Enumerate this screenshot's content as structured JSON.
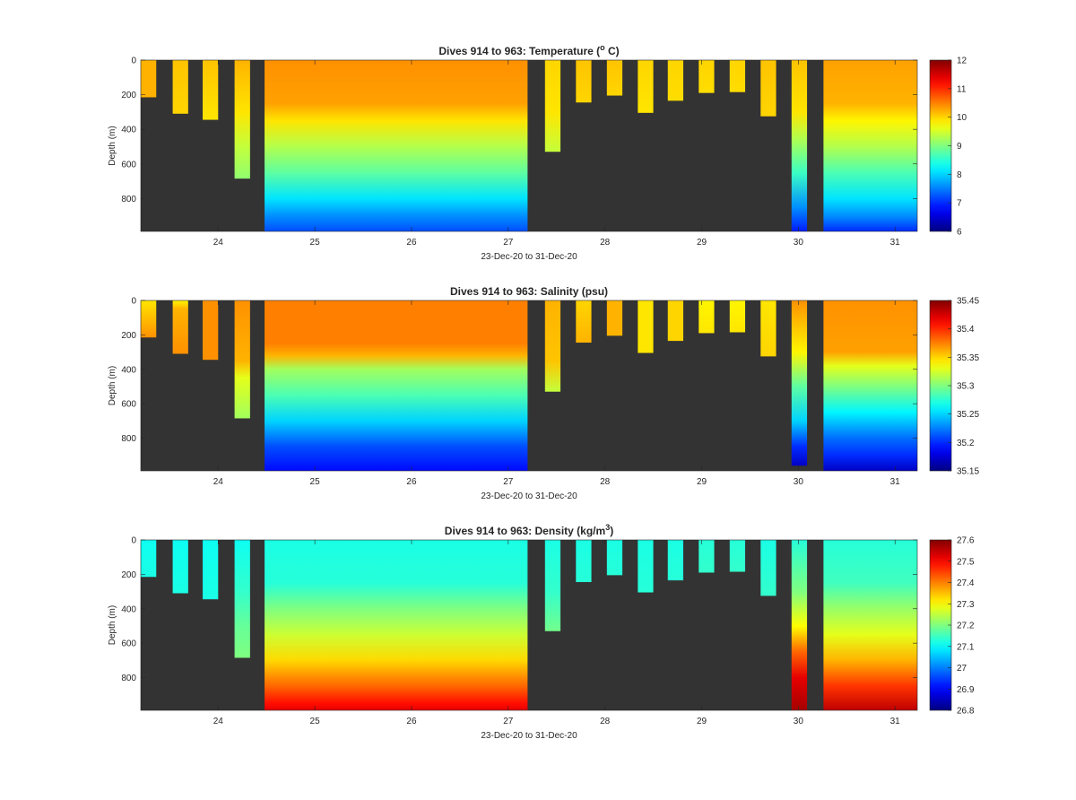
{
  "colors": {
    "no_data": "#333333",
    "axis": "#262626",
    "background": "#ffffff"
  },
  "colormap": "jet",
  "chart_data": [
    {
      "type": "heatmap",
      "title": "Dives 914 to 963: Temperature (",
      "title_sup": "o",
      "title_end": " C)",
      "xlabel": "23-Dec-20 to 31-Dec-20",
      "ylabel": "Depth (m)",
      "xlim": [
        23.2,
        31.23
      ],
      "ylim": [
        990,
        0
      ],
      "xticks": [
        24,
        25,
        26,
        27,
        28,
        29,
        30,
        31
      ],
      "yticks": [
        0,
        200,
        400,
        600,
        800
      ],
      "clim": [
        6,
        12
      ],
      "cticks": [
        6,
        7,
        8,
        9,
        10,
        11,
        12
      ],
      "profiles": [
        {
          "x0": 23.2,
          "x1": 23.36,
          "max_depth": 215,
          "stops": [
            [
              0,
              10.2
            ],
            [
              215,
              10.2
            ]
          ]
        },
        {
          "x0": 23.53,
          "x1": 23.69,
          "max_depth": 310,
          "stops": [
            [
              0,
              10.1
            ],
            [
              310,
              10.0
            ]
          ]
        },
        {
          "x0": 23.84,
          "x1": 24.0,
          "max_depth": 345,
          "stops": [
            [
              0,
              10.1
            ],
            [
              345,
              9.9
            ]
          ]
        },
        {
          "x0": 24.17,
          "x1": 24.33,
          "max_depth": 685,
          "stops": [
            [
              0,
              10.2
            ],
            [
              300,
              9.9
            ],
            [
              500,
              9.4
            ],
            [
              685,
              9.1
            ]
          ]
        },
        {
          "x0": 24.48,
          "x1": 27.2,
          "max_depth": 990,
          "stops": [
            [
              0,
              10.4
            ],
            [
              250,
              10.3
            ],
            [
              350,
              9.9
            ],
            [
              500,
              9.3
            ],
            [
              650,
              8.8
            ],
            [
              800,
              8.1
            ],
            [
              900,
              7.6
            ],
            [
              990,
              7.2
            ]
          ]
        },
        {
          "x0": 27.38,
          "x1": 27.54,
          "max_depth": 530,
          "stops": [
            [
              0,
              10.0
            ],
            [
              300,
              9.9
            ],
            [
              530,
              9.4
            ]
          ]
        },
        {
          "x0": 27.7,
          "x1": 27.86,
          "max_depth": 245,
          "stops": [
            [
              0,
              10.1
            ],
            [
              245,
              10.0
            ]
          ]
        },
        {
          "x0": 28.02,
          "x1": 28.18,
          "max_depth": 205,
          "stops": [
            [
              0,
              10.1
            ],
            [
              205,
              10.0
            ]
          ]
        },
        {
          "x0": 28.34,
          "x1": 28.5,
          "max_depth": 305,
          "stops": [
            [
              0,
              10.0
            ],
            [
              305,
              9.9
            ]
          ]
        },
        {
          "x0": 28.65,
          "x1": 28.81,
          "max_depth": 235,
          "stops": [
            [
              0,
              10.0
            ],
            [
              235,
              9.95
            ]
          ]
        },
        {
          "x0": 28.97,
          "x1": 29.13,
          "max_depth": 190,
          "stops": [
            [
              0,
              10.0
            ],
            [
              190,
              9.95
            ]
          ]
        },
        {
          "x0": 29.29,
          "x1": 29.45,
          "max_depth": 185,
          "stops": [
            [
              0,
              10.0
            ],
            [
              185,
              9.95
            ]
          ]
        },
        {
          "x0": 29.61,
          "x1": 29.77,
          "max_depth": 325,
          "stops": [
            [
              0,
              10.1
            ],
            [
              325,
              10.0
            ]
          ]
        },
        {
          "x0": 29.93,
          "x1": 30.09,
          "max_depth": 990,
          "stops": [
            [
              0,
              10.1
            ],
            [
              300,
              9.9
            ],
            [
              450,
              9.3
            ],
            [
              650,
              8.6
            ],
            [
              850,
              7.6
            ],
            [
              990,
              6.9
            ]
          ]
        },
        {
          "x0": 30.26,
          "x1": 31.23,
          "max_depth": 990,
          "stops": [
            [
              0,
              10.3
            ],
            [
              250,
              10.2
            ],
            [
              350,
              9.8
            ],
            [
              500,
              9.3
            ],
            [
              650,
              8.7
            ],
            [
              800,
              8.1
            ],
            [
              900,
              7.6
            ],
            [
              990,
              7.0
            ]
          ]
        }
      ]
    },
    {
      "type": "heatmap",
      "title": "Dives 914 to 963: Salinity (psu)",
      "title_sup": "",
      "title_end": "",
      "xlabel": "23-Dec-20 to 31-Dec-20",
      "ylabel": "Depth (m)",
      "xlim": [
        23.2,
        31.23
      ],
      "ylim": [
        990,
        0
      ],
      "xticks": [
        24,
        25,
        26,
        27,
        28,
        29,
        30,
        31
      ],
      "yticks": [
        0,
        200,
        400,
        600,
        800
      ],
      "clim": [
        35.15,
        35.45
      ],
      "cticks": [
        35.15,
        35.2,
        35.25,
        35.3,
        35.35,
        35.4,
        35.45
      ],
      "profiles": [
        {
          "x0": 23.2,
          "x1": 23.36,
          "max_depth": 215,
          "stops": [
            [
              0,
              35.345
            ],
            [
              215,
              35.37
            ]
          ]
        },
        {
          "x0": 23.53,
          "x1": 23.69,
          "max_depth": 310,
          "stops": [
            [
              0,
              35.34
            ],
            [
              50,
              35.36
            ],
            [
              310,
              35.37
            ]
          ]
        },
        {
          "x0": 23.84,
          "x1": 24.0,
          "max_depth": 345,
          "stops": [
            [
              0,
              35.37
            ],
            [
              345,
              35.37
            ]
          ]
        },
        {
          "x0": 24.17,
          "x1": 24.33,
          "max_depth": 685,
          "stops": [
            [
              0,
              35.37
            ],
            [
              350,
              35.36
            ],
            [
              450,
              35.33
            ],
            [
              685,
              35.31
            ]
          ]
        },
        {
          "x0": 24.48,
          "x1": 27.2,
          "max_depth": 990,
          "stops": [
            [
              0,
              35.375
            ],
            [
              250,
              35.375
            ],
            [
              320,
              35.36
            ],
            [
              400,
              35.31
            ],
            [
              550,
              35.285
            ],
            [
              700,
              35.25
            ],
            [
              850,
              35.21
            ],
            [
              990,
              35.19
            ]
          ]
        },
        {
          "x0": 27.38,
          "x1": 27.54,
          "max_depth": 530,
          "stops": [
            [
              0,
              35.36
            ],
            [
              350,
              35.355
            ],
            [
              530,
              35.32
            ]
          ]
        },
        {
          "x0": 27.7,
          "x1": 27.86,
          "max_depth": 245,
          "stops": [
            [
              0,
              35.35
            ],
            [
              245,
              35.36
            ]
          ]
        },
        {
          "x0": 28.02,
          "x1": 28.18,
          "max_depth": 205,
          "stops": [
            [
              0,
              35.36
            ],
            [
              205,
              35.36
            ]
          ]
        },
        {
          "x0": 28.34,
          "x1": 28.5,
          "max_depth": 305,
          "stops": [
            [
              0,
              35.345
            ],
            [
              305,
              35.345
            ]
          ]
        },
        {
          "x0": 28.65,
          "x1": 28.81,
          "max_depth": 235,
          "stops": [
            [
              0,
              35.35
            ],
            [
              235,
              35.35
            ]
          ]
        },
        {
          "x0": 28.97,
          "x1": 29.13,
          "max_depth": 190,
          "stops": [
            [
              0,
              35.34
            ],
            [
              190,
              35.345
            ]
          ]
        },
        {
          "x0": 29.29,
          "x1": 29.45,
          "max_depth": 185,
          "stops": [
            [
              0,
              35.34
            ],
            [
              185,
              35.345
            ]
          ]
        },
        {
          "x0": 29.61,
          "x1": 29.77,
          "max_depth": 325,
          "stops": [
            [
              0,
              35.345
            ],
            [
              325,
              35.35
            ]
          ]
        },
        {
          "x0": 29.93,
          "x1": 30.09,
          "max_depth": 960,
          "stops": [
            [
              0,
              35.37
            ],
            [
              300,
              35.34
            ],
            [
              500,
              35.29
            ],
            [
              700,
              35.25
            ],
            [
              850,
              35.2
            ],
            [
              960,
              35.17
            ]
          ]
        },
        {
          "x0": 30.26,
          "x1": 31.23,
          "max_depth": 990,
          "stops": [
            [
              0,
              35.37
            ],
            [
              300,
              35.365
            ],
            [
              380,
              35.33
            ],
            [
              500,
              35.3
            ],
            [
              650,
              35.26
            ],
            [
              800,
              35.22
            ],
            [
              900,
              35.2
            ],
            [
              990,
              35.17
            ]
          ]
        }
      ]
    },
    {
      "type": "heatmap",
      "title": "Dives 914 to 963: Density (kg/m",
      "title_sup": "3",
      "title_end": ")",
      "xlabel": "23-Dec-20 to 31-Dec-20",
      "ylabel": "Depth (m)",
      "xlim": [
        23.2,
        31.23
      ],
      "ylim": [
        990,
        0
      ],
      "xticks": [
        24,
        25,
        26,
        27,
        28,
        29,
        30,
        31
      ],
      "yticks": [
        0,
        200,
        400,
        600,
        800
      ],
      "clim": [
        26.8,
        27.6
      ],
      "cticks": [
        26.8,
        26.9,
        27,
        27.1,
        27.2,
        27.3,
        27.4,
        27.5,
        27.6
      ],
      "profiles": [
        {
          "x0": 23.2,
          "x1": 23.36,
          "max_depth": 215,
          "stops": [
            [
              0,
              27.11
            ],
            [
              215,
              27.12
            ]
          ]
        },
        {
          "x0": 23.53,
          "x1": 23.69,
          "max_depth": 310,
          "stops": [
            [
              0,
              27.11
            ],
            [
              310,
              27.12
            ]
          ]
        },
        {
          "x0": 23.84,
          "x1": 24.0,
          "max_depth": 345,
          "stops": [
            [
              0,
              27.11
            ],
            [
              345,
              27.12
            ]
          ]
        },
        {
          "x0": 24.17,
          "x1": 24.33,
          "max_depth": 685,
          "stops": [
            [
              0,
              27.11
            ],
            [
              300,
              27.14
            ],
            [
              500,
              27.18
            ],
            [
              685,
              27.2
            ]
          ]
        },
        {
          "x0": 24.48,
          "x1": 27.2,
          "max_depth": 990,
          "stops": [
            [
              0,
              27.12
            ],
            [
              250,
              27.13
            ],
            [
              400,
              27.2
            ],
            [
              550,
              27.26
            ],
            [
              700,
              27.33
            ],
            [
              850,
              27.42
            ],
            [
              950,
              27.49
            ],
            [
              990,
              27.52
            ]
          ]
        },
        {
          "x0": 27.38,
          "x1": 27.54,
          "max_depth": 530,
          "stops": [
            [
              0,
              27.12
            ],
            [
              300,
              27.14
            ],
            [
              530,
              27.19
            ]
          ]
        },
        {
          "x0": 27.7,
          "x1": 27.86,
          "max_depth": 245,
          "stops": [
            [
              0,
              27.12
            ],
            [
              245,
              27.13
            ]
          ]
        },
        {
          "x0": 28.02,
          "x1": 28.18,
          "max_depth": 205,
          "stops": [
            [
              0,
              27.12
            ],
            [
              205,
              27.13
            ]
          ]
        },
        {
          "x0": 28.34,
          "x1": 28.5,
          "max_depth": 305,
          "stops": [
            [
              0,
              27.12
            ],
            [
              305,
              27.13
            ]
          ]
        },
        {
          "x0": 28.65,
          "x1": 28.81,
          "max_depth": 235,
          "stops": [
            [
              0,
              27.12
            ],
            [
              235,
              27.13
            ]
          ]
        },
        {
          "x0": 28.97,
          "x1": 29.13,
          "max_depth": 190,
          "stops": [
            [
              0,
              27.13
            ],
            [
              190,
              27.14
            ]
          ]
        },
        {
          "x0": 29.29,
          "x1": 29.45,
          "max_depth": 185,
          "stops": [
            [
              0,
              27.13
            ],
            [
              185,
              27.14
            ]
          ]
        },
        {
          "x0": 29.61,
          "x1": 29.77,
          "max_depth": 325,
          "stops": [
            [
              0,
              27.12
            ],
            [
              325,
              27.14
            ]
          ]
        },
        {
          "x0": 29.93,
          "x1": 30.09,
          "max_depth": 990,
          "stops": [
            [
              0,
              27.13
            ],
            [
              300,
              27.2
            ],
            [
              500,
              27.3
            ],
            [
              650,
              27.42
            ],
            [
              800,
              27.52
            ],
            [
              990,
              27.57
            ]
          ]
        },
        {
          "x0": 30.26,
          "x1": 31.23,
          "max_depth": 990,
          "stops": [
            [
              0,
              27.13
            ],
            [
              250,
              27.15
            ],
            [
              400,
              27.22
            ],
            [
              550,
              27.28
            ],
            [
              700,
              27.36
            ],
            [
              850,
              27.46
            ],
            [
              990,
              27.55
            ]
          ]
        }
      ]
    }
  ]
}
